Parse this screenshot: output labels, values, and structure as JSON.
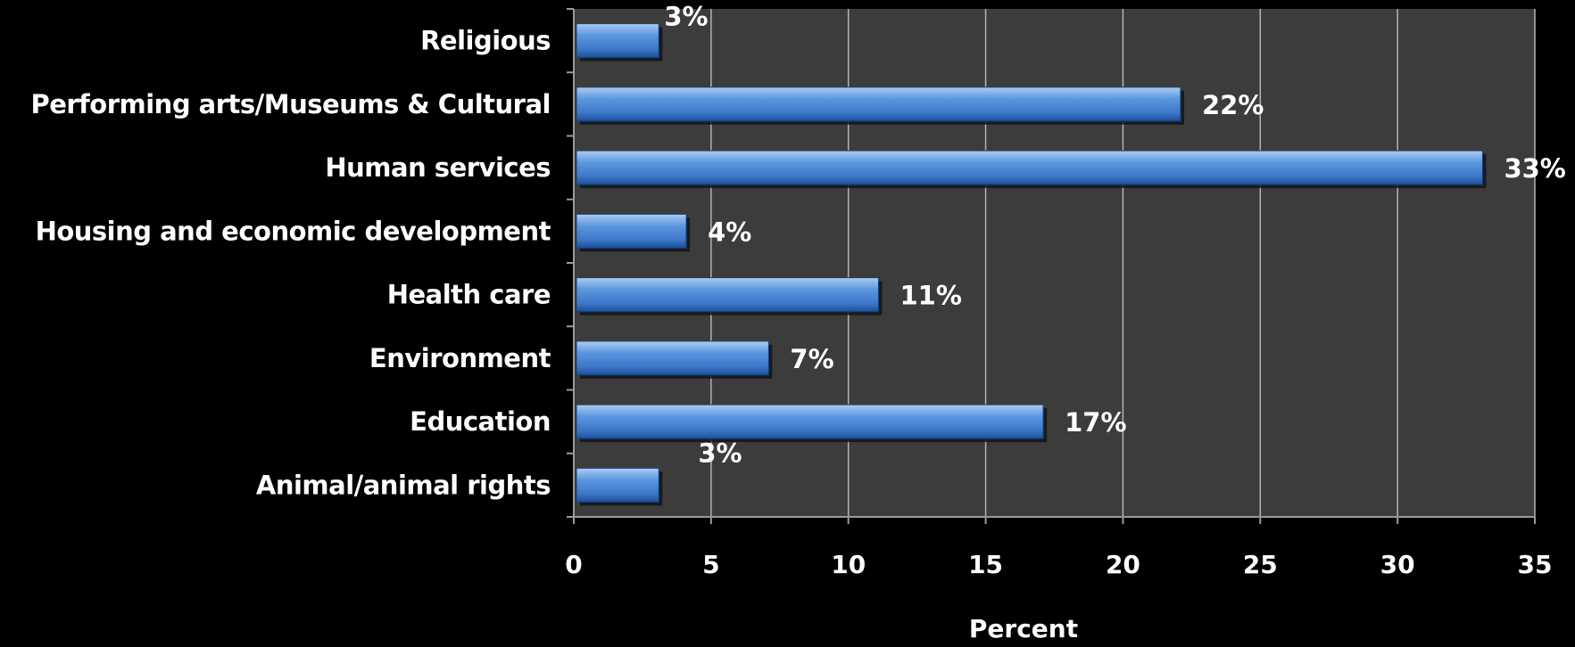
{
  "chart_data": {
    "type": "bar",
    "orientation": "horizontal",
    "categories": [
      "Religious",
      "Performing arts/Museums & Cultural",
      "Human services",
      "Housing and economic development",
      "Health care",
      "Environment",
      "Education",
      "Animal/animal rights"
    ],
    "values": [
      3,
      22,
      33,
      4,
      11,
      7,
      17,
      3
    ],
    "data_labels": [
      "3%",
      "22%",
      "33%",
      "4%",
      "11%",
      "7%",
      "17%",
      "3%"
    ],
    "xlabel": "Percent",
    "ylabel": "",
    "xlim": [
      0,
      35
    ],
    "xticks": [
      0,
      5,
      10,
      15,
      20,
      25,
      30,
      35
    ],
    "grid": "vertical",
    "legend": "none",
    "colors": {
      "background": "#000000",
      "plot_area": "#3c3c3c",
      "bar": "#4a86d6",
      "bar_highlight": "#a9cdf5",
      "bar_shadow": "#1e4f96",
      "gridline": "#b4b4b4",
      "text": "#ffffff"
    }
  }
}
